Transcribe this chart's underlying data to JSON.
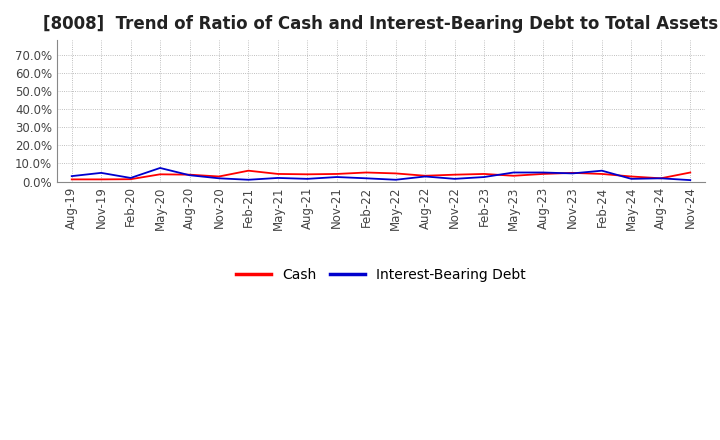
{
  "title": "[8008]  Trend of Ratio of Cash and Interest-Bearing Debt to Total Assets",
  "title_fontsize": 12,
  "ylim": [
    0.0,
    0.78
  ],
  "ytick_values": [
    0.0,
    0.1,
    0.2,
    0.3,
    0.4,
    0.5,
    0.6,
    0.7
  ],
  "x_labels": [
    "Aug-19",
    "Nov-19",
    "Feb-20",
    "May-20",
    "Aug-20",
    "Nov-20",
    "Feb-21",
    "May-21",
    "Aug-21",
    "Nov-21",
    "Feb-22",
    "May-22",
    "Aug-22",
    "Nov-22",
    "Feb-23",
    "May-23",
    "Aug-23",
    "Nov-23",
    "Feb-24",
    "May-24",
    "Aug-24",
    "Nov-24"
  ],
  "cash_color": "#ff0000",
  "debt_color": "#0000cd",
  "background_color": "#ffffff",
  "grid_color": "#aaaaaa",
  "cash_values": [
    0.012,
    0.012,
    0.013,
    0.04,
    0.038,
    0.028,
    0.06,
    0.042,
    0.04,
    0.042,
    0.05,
    0.045,
    0.032,
    0.038,
    0.042,
    0.032,
    0.042,
    0.048,
    0.042,
    0.028,
    0.018,
    0.05
  ],
  "debt_values": [
    0.03,
    0.048,
    0.02,
    0.075,
    0.035,
    0.018,
    0.01,
    0.02,
    0.015,
    0.025,
    0.018,
    0.01,
    0.028,
    0.015,
    0.025,
    0.05,
    0.05,
    0.045,
    0.06,
    0.015,
    0.018,
    0.008
  ],
  "legend_labels": [
    "Cash",
    "Interest-Bearing Debt"
  ]
}
